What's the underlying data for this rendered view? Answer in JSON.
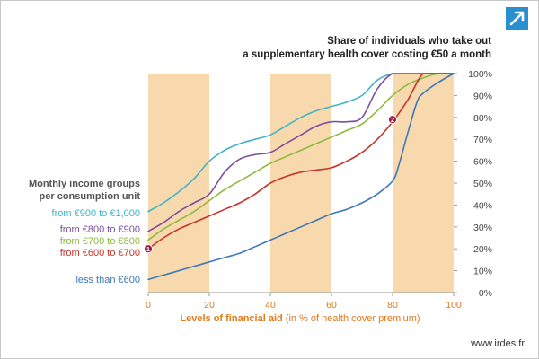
{
  "ui": {
    "footer": "www.irdes.fr",
    "logo_icon": "diagonal-arrow-icon",
    "accent_color": "#2a8fd0"
  },
  "chart_data": {
    "type": "line",
    "title_line1": "Share of individuals who take out",
    "title_line2": "a supplementary health cover costing €50 a month",
    "xlabel_bold": "Levels of financial aid",
    "xlabel_normal": " (in % of health cover premium)",
    "legend_heading_line1": "Monthly income groups",
    "legend_heading_line2": "per consumption unit",
    "xlim": [
      0,
      100
    ],
    "ylim": [
      0,
      100
    ],
    "x_ticks": [
      0,
      20,
      40,
      60,
      80,
      100
    ],
    "x_tick_labels": [
      "0",
      "20",
      "40",
      "60",
      "80",
      "100"
    ],
    "y_ticks": [
      0,
      10,
      20,
      30,
      40,
      50,
      60,
      70,
      80,
      90,
      100
    ],
    "y_tick_labels": [
      "0%",
      "10%",
      "20%",
      "30%",
      "40%",
      "50%",
      "60%",
      "70%",
      "80%",
      "90%",
      "100%"
    ],
    "y_axis_side": "right",
    "grid": false,
    "shaded_bands": [
      [
        0,
        20
      ],
      [
        40,
        60
      ],
      [
        80,
        100
      ]
    ],
    "band_color": "#f8d9ad",
    "series": [
      {
        "name": "from €900 to €1,000",
        "color": "#3fb3c8",
        "x": [
          0,
          5,
          10,
          15,
          20,
          25,
          30,
          35,
          40,
          45,
          50,
          55,
          60,
          65,
          70,
          75,
          80,
          85,
          90,
          95,
          100
        ],
        "y": [
          37,
          41,
          46,
          52,
          60,
          65,
          68,
          70,
          72,
          76,
          80,
          83,
          85,
          87,
          90,
          97,
          100,
          100,
          100,
          100,
          100
        ]
      },
      {
        "name": "from €800 to €900",
        "color": "#7b4f9e",
        "x": [
          0,
          5,
          10,
          15,
          20,
          25,
          30,
          35,
          40,
          45,
          50,
          55,
          60,
          65,
          70,
          75,
          80,
          85,
          90,
          95,
          100
        ],
        "y": [
          28,
          32,
          37,
          41,
          45,
          55,
          61,
          63,
          64,
          68,
          72,
          76,
          78,
          78,
          80,
          93,
          100,
          100,
          100,
          100,
          100
        ]
      },
      {
        "name": "from €700 to €800",
        "color": "#8cba3f",
        "x": [
          0,
          5,
          10,
          15,
          20,
          25,
          30,
          35,
          40,
          45,
          50,
          55,
          60,
          65,
          70,
          75,
          80,
          85,
          90,
          95,
          100
        ],
        "y": [
          24,
          29,
          33,
          37,
          42,
          47,
          51,
          55,
          59,
          62,
          65,
          68,
          71,
          74,
          77,
          83,
          90,
          95,
          98,
          100,
          100
        ]
      },
      {
        "name": "from €600 to €700",
        "color": "#c8322a",
        "x": [
          0,
          5,
          10,
          15,
          20,
          25,
          30,
          35,
          40,
          45,
          50,
          55,
          60,
          65,
          70,
          75,
          80,
          85,
          90,
          95,
          100
        ],
        "y": [
          20,
          25,
          29,
          32,
          35,
          38,
          41,
          45,
          50,
          53,
          55,
          56,
          57,
          60,
          64,
          70,
          78,
          88,
          100,
          100,
          100
        ]
      },
      {
        "name": "less than €600",
        "color": "#3d78b8",
        "x": [
          0,
          5,
          10,
          15,
          20,
          25,
          30,
          35,
          40,
          45,
          50,
          55,
          60,
          65,
          70,
          75,
          80,
          82,
          85,
          88,
          90,
          95,
          100
        ],
        "y": [
          6,
          8,
          10,
          12,
          14,
          16,
          18,
          21,
          24,
          27,
          30,
          33,
          36,
          38,
          41,
          45,
          51,
          58,
          73,
          87,
          91,
          96,
          100
        ]
      }
    ],
    "annotations": [
      {
        "label": "1",
        "x": 0,
        "y": 20,
        "color": "#9a1b40"
      },
      {
        "label": "2",
        "x": 80,
        "y": 79,
        "color": "#9a1b40"
      }
    ]
  }
}
